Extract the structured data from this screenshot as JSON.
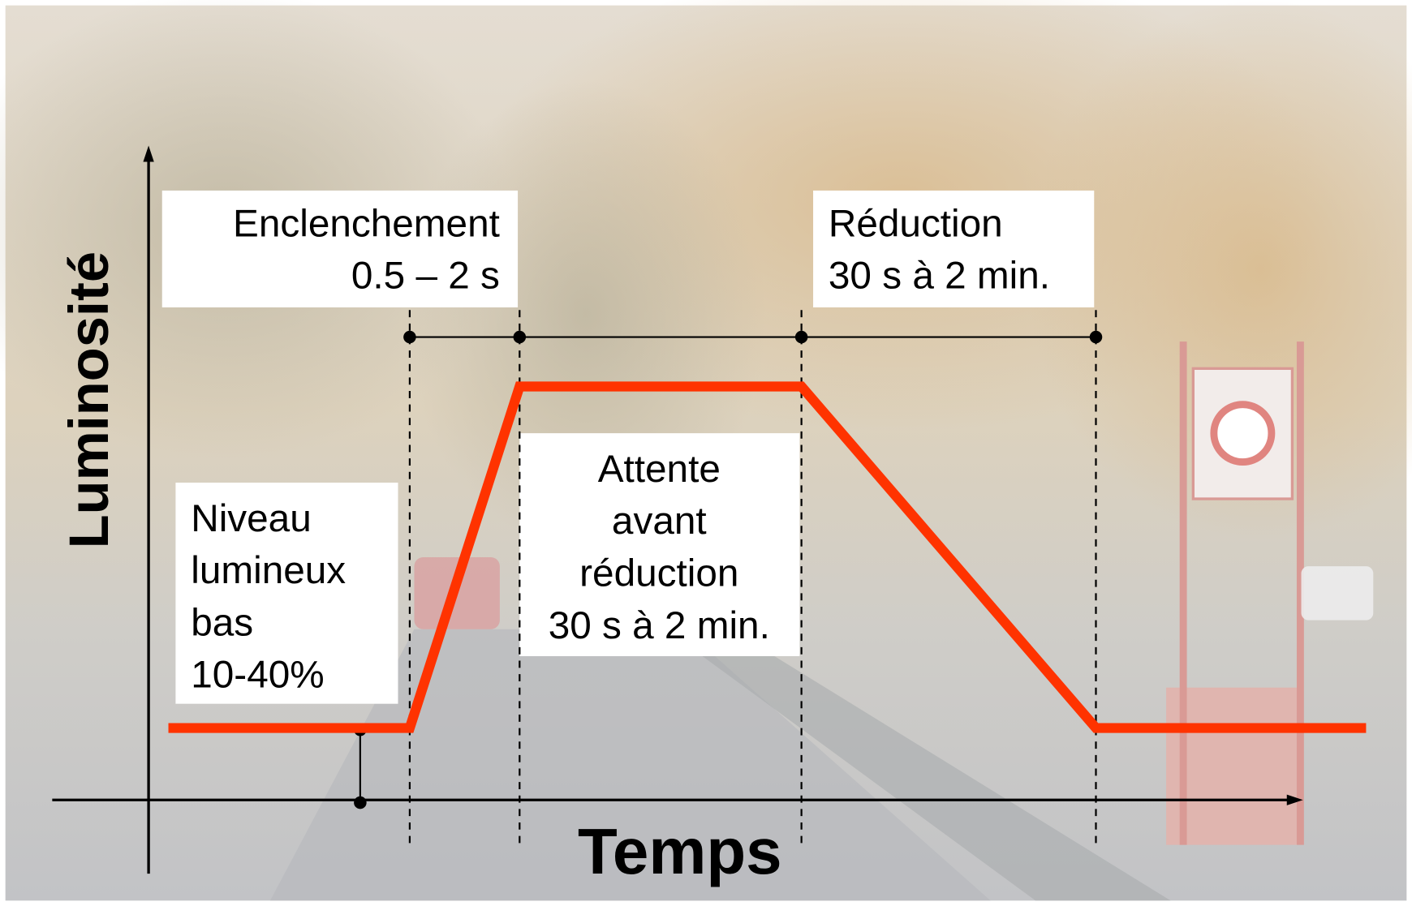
{
  "axes": {
    "y_label": "Luminosité",
    "x_label": "Temps"
  },
  "labels": {
    "enclenchement": [
      "Enclenchement",
      "0.5 – 2 s"
    ],
    "reduction": [
      "Réduction",
      "30 s à 2 min."
    ],
    "niveau": [
      "Niveau",
      "lumineux",
      "bas",
      "10-40%"
    ],
    "attente": [
      "Attente",
      "avant",
      "réduction",
      "30 s à 2 min."
    ]
  }
}
